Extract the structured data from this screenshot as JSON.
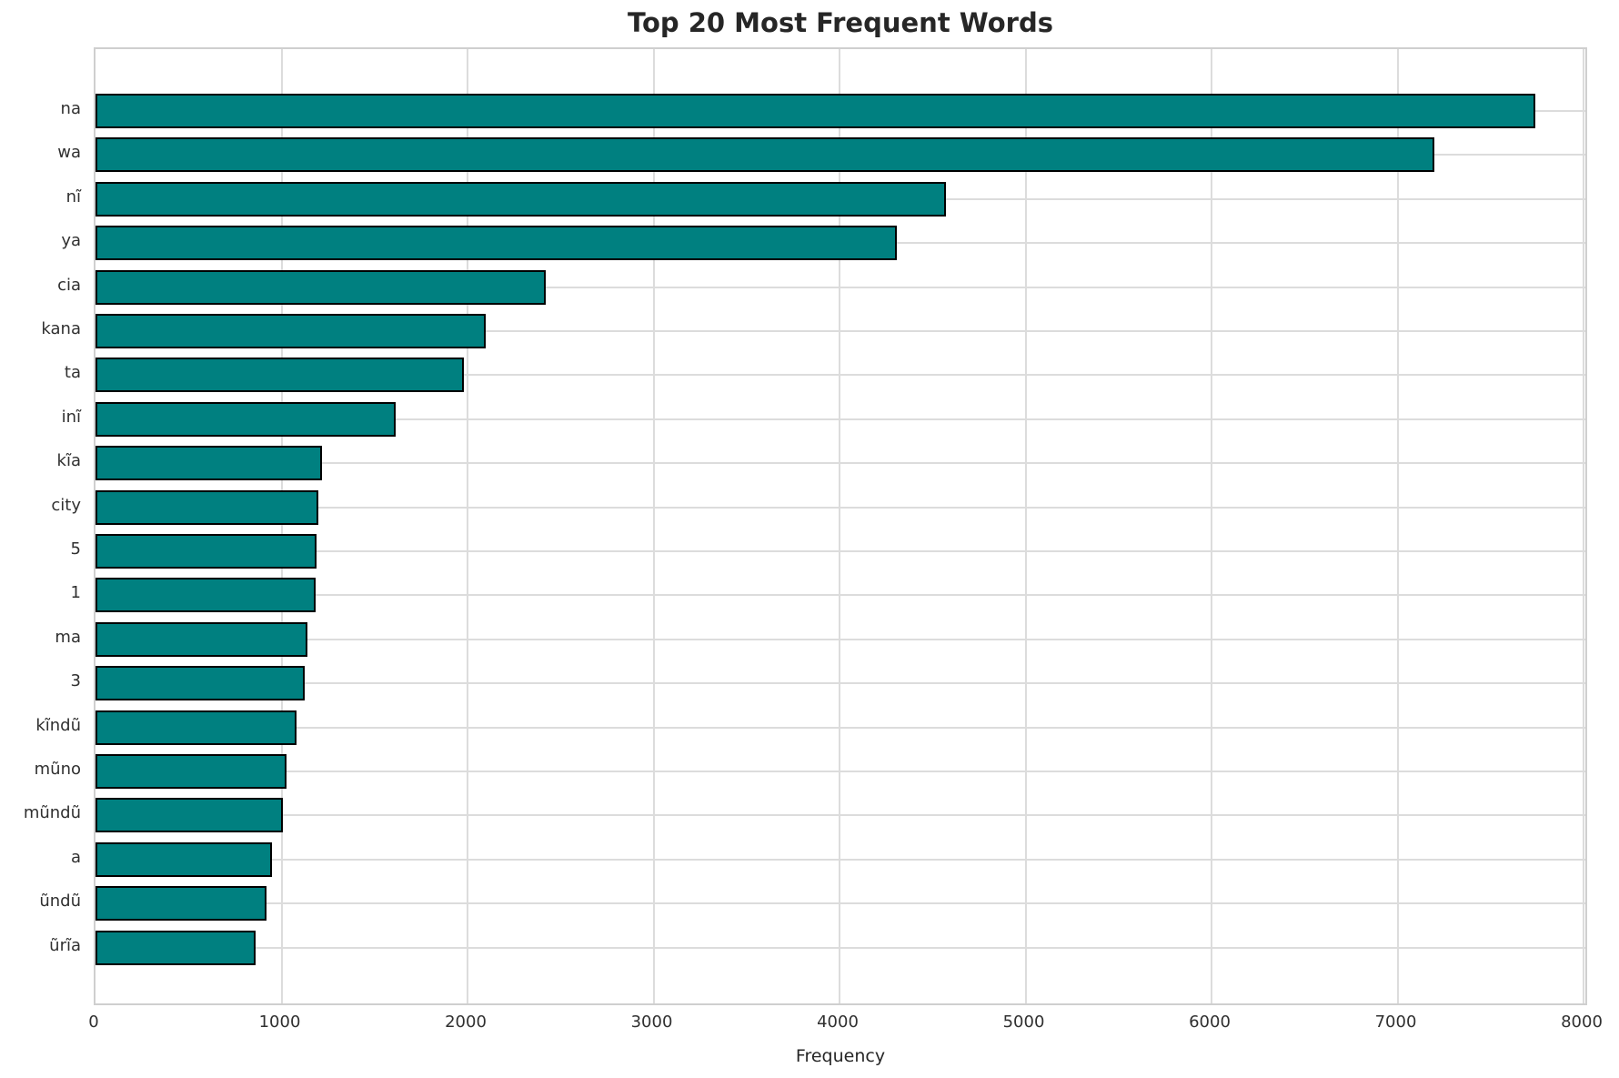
{
  "chart_data": {
    "type": "bar",
    "orientation": "horizontal",
    "title": "Top 20 Most Frequent Words",
    "xlabel": "Frequency",
    "ylabel": "",
    "categories": [
      "na",
      "wa",
      "nĩ",
      "ya",
      "cia",
      "kana",
      "ta",
      "inĩ",
      "kĩa",
      "city",
      "5",
      "1",
      "ma",
      "3",
      "kĩndũ",
      "mũno",
      "mũndũ",
      "a",
      "ũndũ",
      "ũrĩa"
    ],
    "values": [
      7740,
      7200,
      4570,
      4310,
      2420,
      2100,
      1980,
      1615,
      1220,
      1200,
      1190,
      1185,
      1140,
      1125,
      1080,
      1025,
      1005,
      950,
      920,
      860
    ],
    "xlim": [
      0,
      8000
    ],
    "xticks": [
      0,
      1000,
      2000,
      3000,
      4000,
      5000,
      6000,
      7000,
      8000
    ],
    "grid": true,
    "legend_position": "none",
    "colors": {
      "bar_fill": "#008080",
      "bar_edge": "#000000",
      "gridline": "#dcdcdc",
      "spine": "#cfcfcf",
      "title_text": "#262626",
      "tick_text": "#303030"
    }
  }
}
